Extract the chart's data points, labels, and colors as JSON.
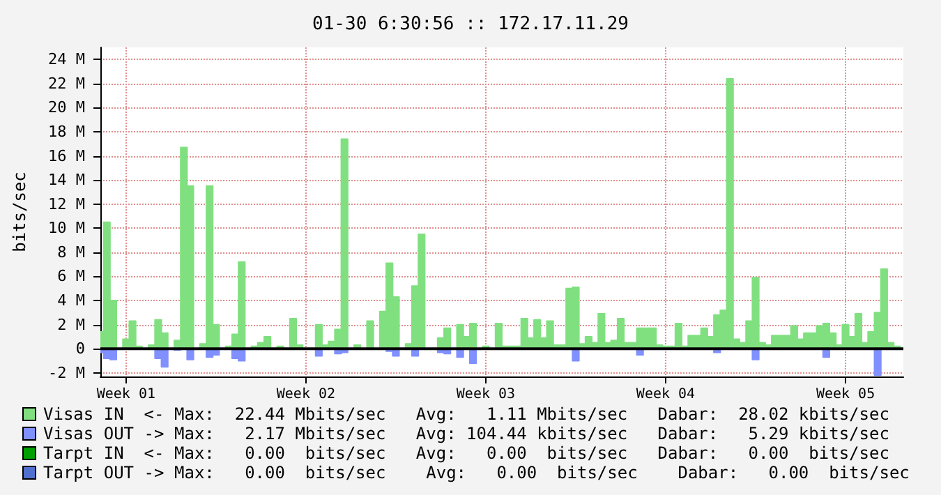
{
  "chart_data": {
    "type": "area",
    "title": "01-30 6:30:56 :: 172.17.11.29",
    "ylabel": "bits/sec",
    "categories": [
      null,
      null,
      null,
      null,
      "Week 01",
      null,
      null,
      null,
      null,
      null,
      null,
      null,
      null,
      null,
      null,
      null,
      null,
      null,
      null,
      null,
      null,
      null,
      null,
      null,
      null,
      null,
      null,
      null,
      null,
      null,
      null,
      null,
      "Week 02",
      null,
      null,
      null,
      null,
      null,
      null,
      null,
      null,
      null,
      null,
      null,
      null,
      null,
      null,
      null,
      null,
      null,
      null,
      null,
      null,
      null,
      null,
      null,
      null,
      null,
      null,
      null,
      "Week 03",
      null,
      null,
      null,
      null,
      null,
      null,
      null,
      null,
      null,
      null,
      null,
      null,
      null,
      null,
      null,
      null,
      null,
      null,
      null,
      null,
      null,
      null,
      null,
      null,
      null,
      null,
      null,
      "Week 04",
      null,
      null,
      null,
      null,
      null,
      null,
      null,
      null,
      null,
      null,
      null,
      null,
      null,
      null,
      null,
      null,
      null,
      null,
      null,
      null,
      null,
      null,
      null,
      null,
      null,
      null,
      null,
      "Week 05",
      null,
      null,
      null,
      null,
      null,
      null,
      null,
      null,
      null
    ],
    "ylim": [
      -2.3,
      25
    ],
    "yticks": [
      {
        "value": -2,
        "label": "-2 M"
      },
      0,
      {
        "value": 2,
        "label": "2 M"
      },
      {
        "value": 4,
        "label": "4 M"
      },
      {
        "value": 6,
        "label": "6 M"
      },
      {
        "value": 8,
        "label": "8 M"
      },
      {
        "value": 10,
        "label": "10 M"
      },
      {
        "value": 12,
        "label": "12 M"
      },
      {
        "value": 14,
        "label": "14 M"
      },
      {
        "value": 16,
        "label": "16 M"
      },
      {
        "value": 18,
        "label": "18 M"
      },
      {
        "value": 20,
        "label": "20 M"
      },
      {
        "value": 22,
        "label": "22 M"
      },
      {
        "value": 24,
        "label": "24 M"
      }
    ],
    "grid": true,
    "legend": "bottom",
    "annotations": [
      "Max:  22.44 Mbits/sec   Avg:   1.11 Mbits/sec   Dabar:  28.02 kbits/sec",
      "Max:   2.17 Mbits/sec   Avg: 104.44 kbits/sec   Dabar:   5.29 kbits/sec",
      "Max:   0.00  bits/sec   Avg:   0.00  bits/sec   Dabar:   0.00  bits/sec",
      "Max:   0.00  bits/sec    Avg:   0.00  bits/sec    Dabar:   0.00  bits/sec"
    ],
    "series": [
      {
        "name": "Visas IN  <-",
        "color": "#80e080",
        "values": [
          1.4,
          10.5,
          4.0,
          0,
          0.8,
          2.3,
          0.2,
          0,
          0.3,
          2.4,
          1.3,
          0,
          0.7,
          16.7,
          13.5,
          0,
          0.4,
          13.5,
          2.0,
          0,
          0.2,
          1.2,
          7.2,
          0,
          0.2,
          0.5,
          1.0,
          0,
          0.2,
          0,
          2.5,
          0.3,
          0,
          0,
          2.0,
          0.3,
          0.6,
          1.6,
          17.4,
          0,
          0.3,
          0,
          2.3,
          0,
          3.1,
          7.1,
          4.3,
          0,
          0.4,
          5.2,
          9.5,
          0,
          0,
          0.9,
          1.7,
          0,
          2.0,
          1.0,
          2.1,
          0,
          0.2,
          0,
          2.1,
          0.2,
          0.2,
          0.2,
          2.5,
          0.9,
          2.4,
          0.9,
          2.3,
          0.3,
          0.3,
          5.0,
          5.1,
          0.4,
          1.0,
          0.5,
          2.9,
          0.5,
          0.7,
          2.5,
          0.5,
          0.5,
          1.7,
          1.7,
          1.7,
          0.3,
          0.2,
          0.2,
          2.1,
          0.2,
          1.1,
          1.1,
          1.7,
          1.0,
          2.8,
          3.2,
          22.4,
          0.8,
          0.5,
          2.3,
          5.9,
          0.5,
          0.3,
          1.1,
          1.1,
          1.1,
          1.9,
          0.8,
          1.3,
          1.3,
          1.9,
          2.1,
          1.3,
          0.3,
          2.0,
          1.0,
          2.9,
          0.5,
          1.4,
          3.0,
          6.6,
          0.5,
          0.2,
          0
        ]
      },
      {
        "name": "Visas OUT ->",
        "color": "#8090ff",
        "values": [
          -0.3,
          -0.8,
          -0.9,
          0,
          0,
          0,
          0,
          0,
          0,
          -0.8,
          -1.5,
          0,
          -0.1,
          0,
          -0.9,
          0,
          0,
          -0.7,
          -0.5,
          0,
          0,
          -0.8,
          -1.0,
          0,
          0,
          0,
          0,
          0,
          0,
          0,
          0,
          0,
          0,
          0,
          -0.6,
          0,
          0,
          -0.4,
          -0.3,
          0,
          0,
          0,
          0,
          0,
          0,
          -0.2,
          -0.6,
          0,
          0,
          -0.6,
          0,
          0,
          0,
          -0.3,
          -0.4,
          0,
          -0.7,
          0,
          -1.2,
          0,
          0,
          0,
          0,
          0,
          0,
          0,
          0,
          0,
          0,
          0,
          0,
          0,
          0,
          0,
          -1.0,
          0,
          0,
          0,
          0,
          0,
          0,
          0,
          0,
          0,
          -0.5,
          0,
          0,
          0,
          0,
          0,
          0,
          0,
          0,
          0,
          0,
          0,
          -0.3,
          0,
          0,
          0,
          0,
          0,
          -0.9,
          0,
          0,
          0,
          0,
          0,
          0,
          0,
          0,
          0,
          0,
          -0.7,
          0,
          0,
          0,
          0,
          0,
          0,
          0,
          -2.2,
          0,
          0,
          0,
          0
        ]
      },
      {
        "name": "Tarpt IN  <-",
        "color": "#00a000",
        "values": [
          null,
          null,
          null,
          null,
          null,
          null,
          null,
          null,
          null,
          null,
          null,
          null,
          null,
          null,
          null,
          null,
          null,
          null,
          null,
          null,
          null,
          null,
          null,
          null,
          null,
          null,
          null,
          null,
          null,
          null,
          null,
          null,
          null,
          null,
          null,
          null,
          null,
          null,
          null,
          null,
          null,
          null,
          null,
          null,
          null,
          null,
          null,
          null,
          null,
          null,
          null,
          null,
          null,
          null,
          null,
          null,
          null,
          null,
          null,
          null,
          null,
          null,
          null,
          null,
          null,
          null,
          null,
          null,
          null,
          null,
          null,
          null,
          null,
          null,
          null,
          null,
          null,
          null,
          null,
          null,
          null,
          null,
          null,
          null,
          null,
          null,
          null,
          null,
          null,
          null,
          null,
          null,
          null,
          null,
          null,
          null,
          null,
          null,
          null,
          null,
          null,
          null,
          null,
          null,
          null,
          null,
          null,
          null,
          null,
          null,
          null,
          null,
          null,
          null,
          null,
          null,
          null,
          null,
          null,
          null,
          null,
          null,
          null,
          null,
          null,
          null
        ]
      },
      {
        "name": "Tarpt OUT ->",
        "color": "#5070d0",
        "values": [
          null,
          null,
          null,
          null,
          null,
          null,
          null,
          null,
          null,
          null,
          null,
          null,
          null,
          null,
          null,
          null,
          null,
          null,
          null,
          null,
          null,
          null,
          null,
          null,
          null,
          null,
          null,
          null,
          null,
          null,
          null,
          null,
          null,
          null,
          null,
          null,
          null,
          null,
          null,
          null,
          null,
          null,
          null,
          null,
          null,
          null,
          null,
          null,
          null,
          null,
          null,
          null,
          null,
          null,
          null,
          null,
          null,
          null,
          null,
          null,
          null,
          null,
          null,
          null,
          null,
          null,
          null,
          null,
          null,
          null,
          null,
          null,
          null,
          null,
          null,
          null,
          null,
          null,
          null,
          null,
          null,
          null,
          null,
          null,
          null,
          null,
          null,
          null,
          null,
          null,
          null,
          null,
          null,
          null,
          null,
          null,
          null,
          null,
          null,
          null,
          null,
          null,
          null,
          null,
          null,
          null,
          null,
          null,
          null,
          null,
          null,
          null,
          null,
          null,
          null,
          null,
          null,
          null,
          null,
          null,
          null,
          null,
          null,
          null,
          null,
          null
        ]
      }
    ]
  }
}
